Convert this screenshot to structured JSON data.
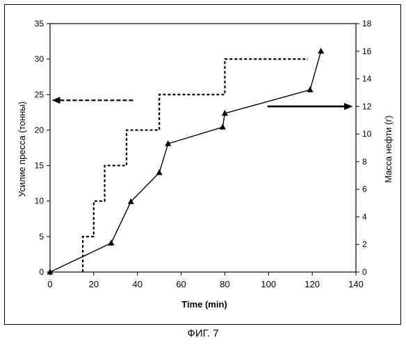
{
  "chart_data": {
    "type": "line",
    "xlabel": "Time (min)",
    "ylabel_left": "Усилие пресса (тонны)",
    "ylabel_right": "Масса нефти (г)",
    "xlim": [
      0,
      140
    ],
    "ylim_left": [
      0,
      35
    ],
    "ylim_right": [
      0,
      18
    ],
    "x_ticks": [
      0,
      20,
      40,
      60,
      80,
      100,
      120,
      140
    ],
    "y_left_ticks": [
      0,
      5,
      10,
      15,
      20,
      25,
      30,
      35
    ],
    "y_right_ticks": [
      0,
      2,
      4,
      6,
      8,
      10,
      12,
      14,
      16,
      18
    ],
    "grid": false,
    "legend": "none",
    "series": [
      {
        "axis": "left",
        "style": "dashed-step",
        "points": [
          [
            15,
            0
          ],
          [
            15,
            5
          ],
          [
            20,
            5
          ],
          [
            20,
            10
          ],
          [
            25,
            10
          ],
          [
            25,
            15
          ],
          [
            35,
            15
          ],
          [
            35,
            20
          ],
          [
            50,
            20
          ],
          [
            50,
            25
          ],
          [
            80,
            25
          ],
          [
            80,
            30
          ],
          [
            118,
            30
          ]
        ]
      },
      {
        "axis": "right",
        "style": "solid-triangle-markers",
        "points": [
          [
            0,
            0
          ],
          [
            28,
            2.1
          ],
          [
            37,
            5.1
          ],
          [
            50,
            7.2
          ],
          [
            54,
            9.3
          ],
          [
            79,
            10.5
          ],
          [
            80,
            11.5
          ],
          [
            119,
            13.2
          ],
          [
            124,
            16
          ]
        ]
      }
    ],
    "annotations": [
      {
        "type": "arrow",
        "direction": "left",
        "style": "dashed",
        "points_to": "left-axis"
      },
      {
        "type": "arrow",
        "direction": "right",
        "style": "solid",
        "points_to": "right-axis"
      }
    ]
  },
  "caption": "ФИГ. 7"
}
